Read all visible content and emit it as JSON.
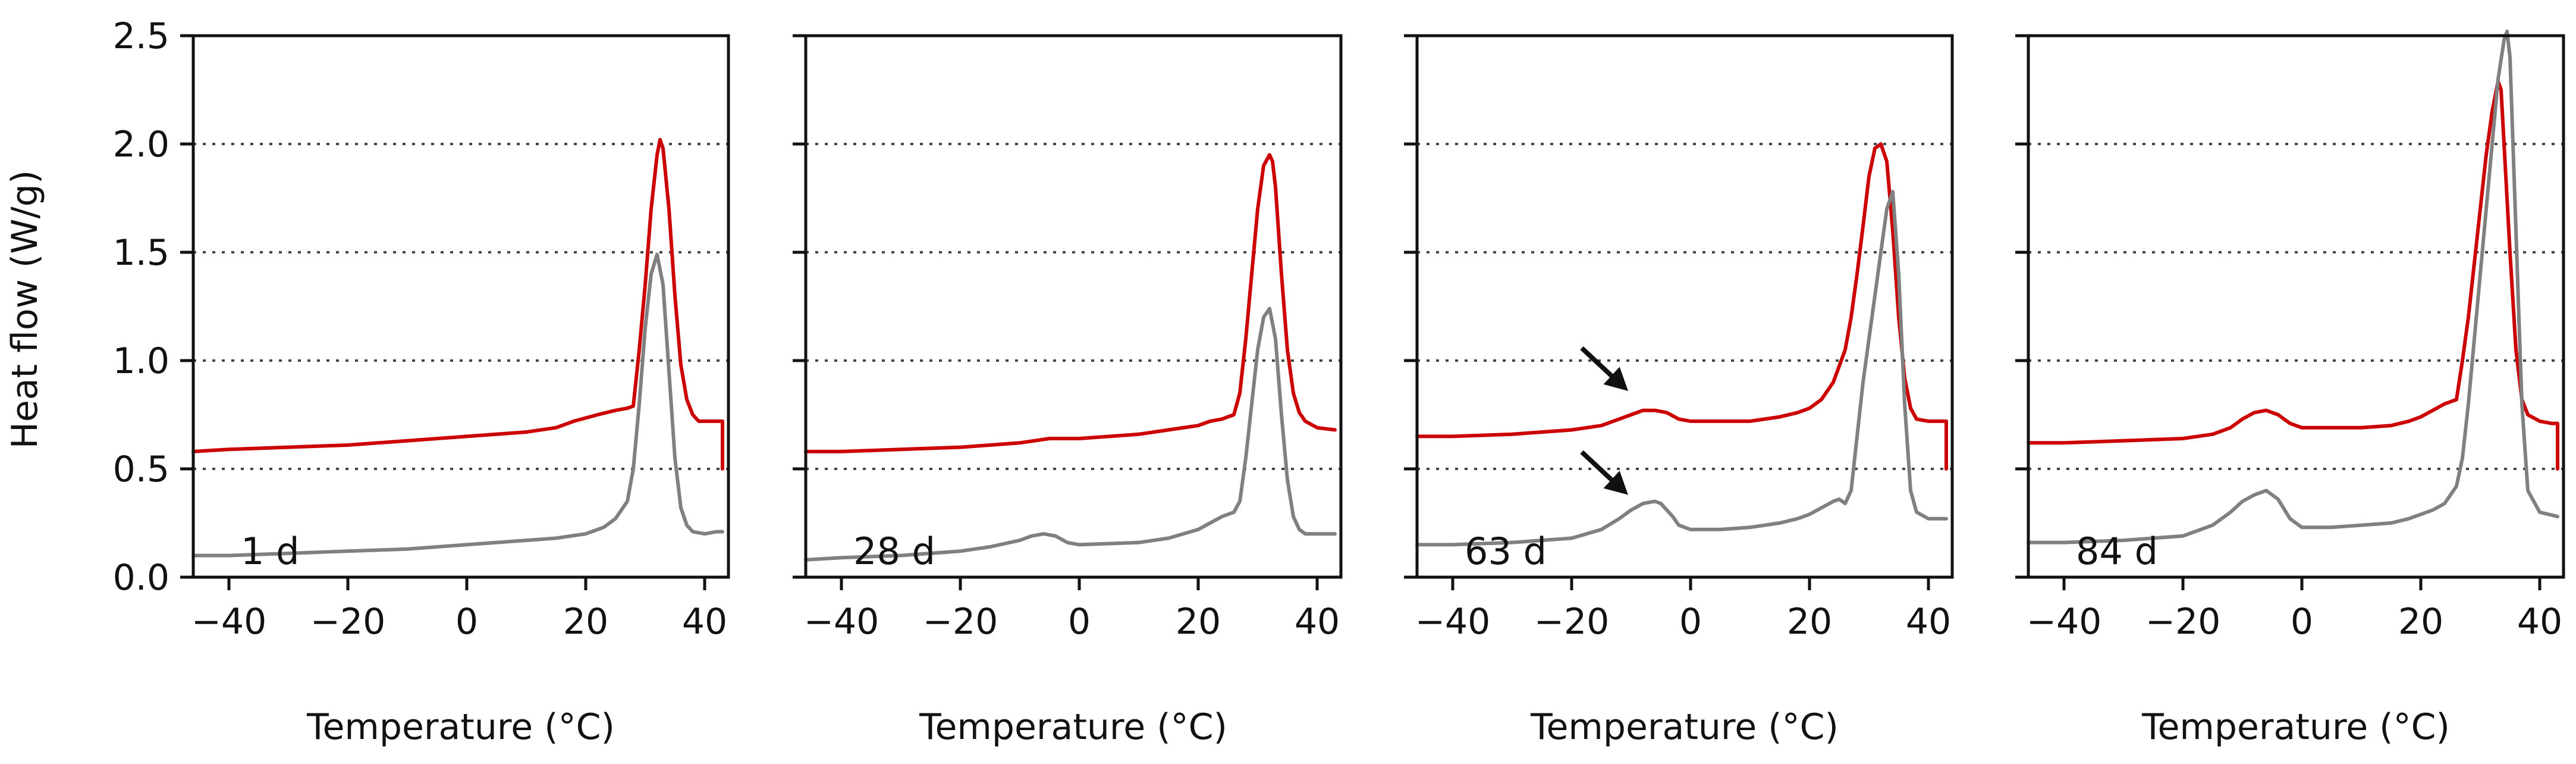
{
  "chart_data": {
    "type": "line",
    "ylabel": "Heat flow (W/g)",
    "xlabel": "Temperature (°C)",
    "xlim": [
      -46,
      44
    ],
    "ylim": [
      0,
      2.5
    ],
    "xticks": [
      -40,
      -20,
      0,
      20,
      40
    ],
    "yticks": [
      0.0,
      0.5,
      1.0,
      1.5,
      2.0,
      2.5
    ],
    "ytick_labels": [
      "0.0",
      "0.5",
      "1.0",
      "1.5",
      "2.0",
      "2.5"
    ],
    "grid": {
      "y_dotted_at": [
        0.5,
        1.0,
        1.5,
        2.0
      ]
    },
    "series_colors": {
      "red": "#cc0000",
      "gray": "#808080"
    },
    "panels": [
      {
        "label": "1 d",
        "series": [
          {
            "name": "red",
            "color": "#cc0000",
            "x": [
              -46,
              -40,
              -30,
              -20,
              -10,
              0,
              10,
              15,
              18,
              22,
              25,
              27,
              28,
              29,
              30,
              31,
              32,
              32.5,
              33,
              34,
              35,
              36,
              37,
              38,
              39,
              42,
              43,
              43
            ],
            "y": [
              0.58,
              0.59,
              0.6,
              0.61,
              0.63,
              0.65,
              0.67,
              0.69,
              0.72,
              0.75,
              0.77,
              0.78,
              0.79,
              1.05,
              1.35,
              1.7,
              1.95,
              2.02,
              1.98,
              1.7,
              1.3,
              0.98,
              0.82,
              0.75,
              0.72,
              0.72,
              0.72,
              0.5
            ]
          },
          {
            "name": "gray",
            "color": "#808080",
            "x": [
              -46,
              -40,
              -30,
              -20,
              -10,
              0,
              10,
              15,
              20,
              23,
              25,
              27,
              28,
              29,
              30,
              31,
              32,
              33,
              34,
              35,
              36,
              37,
              38,
              40,
              42,
              43
            ],
            "y": [
              0.1,
              0.1,
              0.11,
              0.12,
              0.13,
              0.15,
              0.17,
              0.18,
              0.2,
              0.23,
              0.27,
              0.35,
              0.5,
              0.8,
              1.15,
              1.4,
              1.49,
              1.35,
              0.95,
              0.55,
              0.32,
              0.24,
              0.21,
              0.2,
              0.21,
              0.21
            ]
          }
        ]
      },
      {
        "label": "28 d",
        "series": [
          {
            "name": "red",
            "color": "#cc0000",
            "x": [
              -46,
              -40,
              -30,
              -20,
              -15,
              -10,
              -5,
              0,
              10,
              15,
              20,
              22,
              24,
              25,
              26,
              27,
              28,
              29,
              30,
              31,
              32,
              32.5,
              33,
              34,
              35,
              36,
              37,
              38,
              40,
              43
            ],
            "y": [
              0.58,
              0.58,
              0.59,
              0.6,
              0.61,
              0.62,
              0.64,
              0.64,
              0.66,
              0.68,
              0.7,
              0.72,
              0.73,
              0.74,
              0.75,
              0.85,
              1.1,
              1.4,
              1.7,
              1.9,
              1.95,
              1.92,
              1.8,
              1.4,
              1.05,
              0.85,
              0.76,
              0.72,
              0.69,
              0.68
            ]
          },
          {
            "name": "gray",
            "color": "#808080",
            "x": [
              -46,
              -40,
              -30,
              -20,
              -15,
              -10,
              -8,
              -6,
              -4,
              -2,
              0,
              10,
              15,
              20,
              22,
              24,
              26,
              27,
              28,
              29,
              30,
              31,
              32,
              33,
              34,
              35,
              36,
              37,
              38,
              40,
              43
            ],
            "y": [
              0.08,
              0.09,
              0.1,
              0.12,
              0.14,
              0.17,
              0.19,
              0.2,
              0.19,
              0.16,
              0.15,
              0.16,
              0.18,
              0.22,
              0.25,
              0.28,
              0.3,
              0.35,
              0.55,
              0.8,
              1.05,
              1.2,
              1.24,
              1.1,
              0.75,
              0.45,
              0.28,
              0.22,
              0.2,
              0.2,
              0.2
            ]
          }
        ]
      },
      {
        "label": "63 d",
        "arrows": true,
        "series": [
          {
            "name": "red",
            "color": "#cc0000",
            "x": [
              -46,
              -40,
              -30,
              -20,
              -15,
              -12,
              -10,
              -8,
              -6,
              -4,
              -2,
              0,
              5,
              10,
              15,
              18,
              20,
              22,
              24,
              26,
              27,
              28,
              29,
              30,
              31,
              32,
              33,
              34,
              35,
              36,
              37,
              38,
              40,
              42,
              43,
              43
            ],
            "y": [
              0.65,
              0.65,
              0.66,
              0.68,
              0.7,
              0.73,
              0.75,
              0.77,
              0.77,
              0.76,
              0.73,
              0.72,
              0.72,
              0.72,
              0.74,
              0.76,
              0.78,
              0.82,
              0.9,
              1.05,
              1.2,
              1.4,
              1.62,
              1.85,
              1.98,
              2.0,
              1.92,
              1.6,
              1.2,
              0.92,
              0.78,
              0.73,
              0.72,
              0.72,
              0.72,
              0.5
            ]
          },
          {
            "name": "gray",
            "color": "#808080",
            "x": [
              -46,
              -40,
              -30,
              -20,
              -15,
              -12,
              -10,
              -8,
              -6,
              -5,
              -3,
              -2,
              0,
              5,
              10,
              15,
              18,
              20,
              22,
              24,
              25,
              26,
              27,
              28,
              29,
              30,
              31,
              32,
              33,
              34,
              35,
              36,
              37,
              38,
              40,
              43
            ],
            "y": [
              0.15,
              0.15,
              0.16,
              0.18,
              0.22,
              0.27,
              0.31,
              0.34,
              0.35,
              0.34,
              0.28,
              0.24,
              0.22,
              0.22,
              0.23,
              0.25,
              0.27,
              0.29,
              0.32,
              0.35,
              0.36,
              0.34,
              0.4,
              0.65,
              0.9,
              1.1,
              1.3,
              1.5,
              1.7,
              1.78,
              1.4,
              0.8,
              0.4,
              0.3,
              0.27,
              0.27
            ]
          }
        ]
      },
      {
        "label": "84 d",
        "series": [
          {
            "name": "red",
            "color": "#cc0000",
            "x": [
              -46,
              -40,
              -30,
              -20,
              -15,
              -12,
              -10,
              -8,
              -6,
              -4,
              -2,
              0,
              5,
              10,
              15,
              18,
              20,
              22,
              24,
              25,
              26,
              27,
              28,
              29,
              30,
              31,
              32,
              33,
              33.5,
              34,
              35,
              36,
              37,
              38,
              40,
              42,
              43,
              43
            ],
            "y": [
              0.62,
              0.62,
              0.63,
              0.64,
              0.66,
              0.69,
              0.73,
              0.76,
              0.77,
              0.75,
              0.71,
              0.69,
              0.69,
              0.69,
              0.7,
              0.72,
              0.74,
              0.77,
              0.8,
              0.81,
              0.82,
              1.0,
              1.2,
              1.45,
              1.7,
              1.95,
              2.15,
              2.29,
              2.25,
              2.0,
              1.5,
              1.05,
              0.82,
              0.75,
              0.72,
              0.71,
              0.71,
              0.5
            ]
          },
          {
            "name": "gray",
            "color": "#808080",
            "x": [
              -46,
              -40,
              -30,
              -20,
              -15,
              -12,
              -10,
              -8,
              -6,
              -4,
              -2,
              0,
              5,
              10,
              15,
              18,
              20,
              22,
              24,
              25,
              26,
              27,
              28,
              29,
              30,
              31,
              32,
              33,
              34,
              34.5,
              35,
              36,
              37,
              38,
              40,
              43
            ],
            "y": [
              0.16,
              0.16,
              0.17,
              0.19,
              0.24,
              0.3,
              0.35,
              0.38,
              0.4,
              0.36,
              0.27,
              0.23,
              0.23,
              0.24,
              0.25,
              0.27,
              0.29,
              0.31,
              0.34,
              0.38,
              0.42,
              0.55,
              0.8,
              1.1,
              1.4,
              1.7,
              2.0,
              2.3,
              2.48,
              2.52,
              2.4,
              1.6,
              0.8,
              0.4,
              0.3,
              0.28
            ]
          }
        ]
      }
    ]
  }
}
